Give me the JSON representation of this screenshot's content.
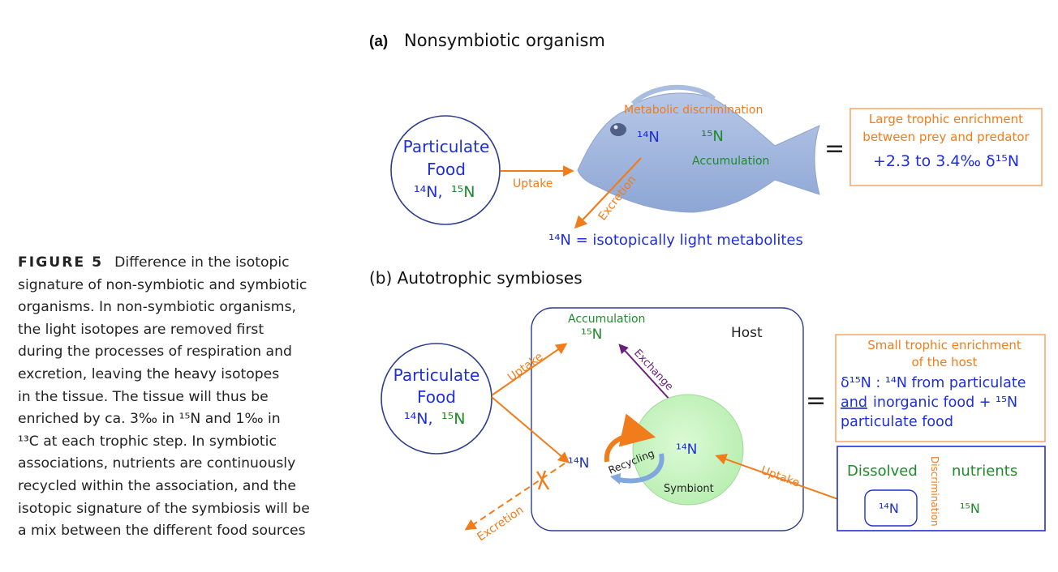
{
  "caption": {
    "label": "FIGURE 5",
    "lines": [
      "Difference in the isotopic",
      "signature of non-symbiotic and symbiotic",
      "organisms. In non-symbiotic organisms,",
      "the light isotopes are removed first",
      "during the processes of respiration and",
      "excretion, leaving the heavy isotopes",
      "in the tissue. The tissue will thus be",
      "enriched by ca. 3‰ in 15N and 1‰ in",
      "13C at each trophic step. In symbiotic",
      "associations, nutrients are continuously",
      "recycled within the association, and the",
      "isotopic signature of the symbiosis will be",
      "a mix between the different food sources"
    ]
  },
  "panel_a": {
    "label": "(a)",
    "title": "Nonsymbiotic organism",
    "food_line1": "Particulate",
    "food_line2": "Food",
    "food_iso_light": "14N,",
    "food_iso_heavy": "15N",
    "uptake": "Uptake",
    "excretion": "Excretion",
    "metabolic": "Metabolic discrimination",
    "fish_n14": "14N",
    "fish_n15": "15N",
    "accumulation": "Accumulation",
    "equals": "=",
    "result_line1": "Large trophic enrichment",
    "result_line2": "between prey and predator",
    "result_value": "+2.3 to 3.4‰ δ15N",
    "bottom_note": "14N = isotopically light metabolites"
  },
  "panel_b": {
    "title": "(b) Autotrophic symbioses",
    "host": "Host",
    "accumulation": "Accumulation",
    "acc_n15": "15N",
    "exchange": "Exchange",
    "food_line1": "Particulate",
    "food_line2": "Food",
    "food_iso_light": "14N,",
    "food_iso_heavy": "15N",
    "uptake_food": "Uptake",
    "host_n14": "14N",
    "recycling": "Recycling",
    "symbiont_n14": "14N",
    "symbiont": "Symbiont",
    "excretion": "Excretion",
    "uptake_dissolved": "Uptake",
    "equals": "=",
    "result_line1": "Small trophic enrichment",
    "result_line2": "of the host",
    "result_line3": "δ15N : 14N from particulate",
    "result_line4_u": "and",
    "result_line4_rest": "inorganic food + 15N",
    "result_line5": "particulate food",
    "dissolved": "Dissolved",
    "nutrients": "nutrients",
    "discrimination": "Discrimination",
    "dis_n14": "14N",
    "dis_n15": "15N"
  },
  "colors": {
    "orange": "#f07c1b",
    "blue_text": "#1f2fd6",
    "green_text": "#1e8a2a",
    "circle_stroke": "#2d3e8c",
    "purple": "#6b1f7a",
    "symbiont_fill": "#c9f5c2",
    "result_box_border": "#f5a05a",
    "dissolved_box_border": "#1f2fd6"
  }
}
